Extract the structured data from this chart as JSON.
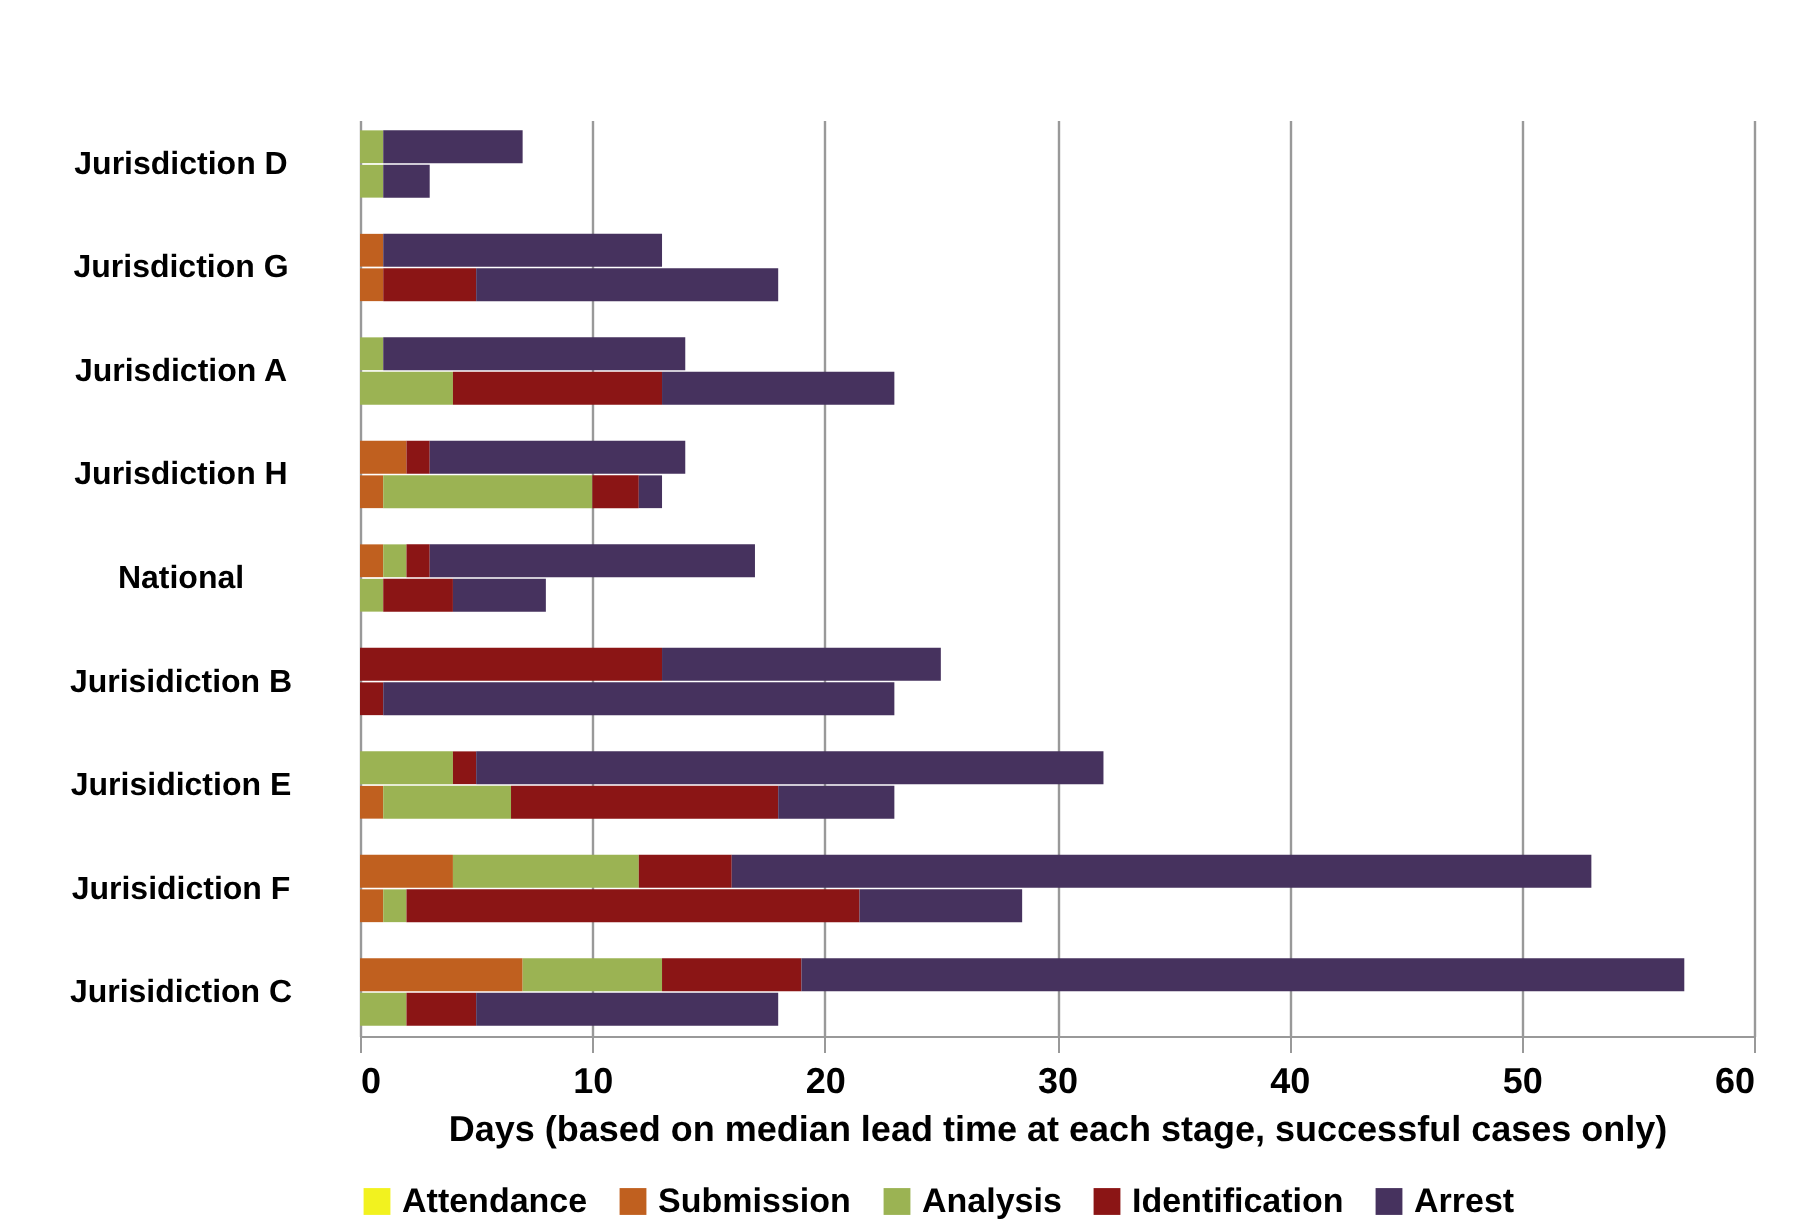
{
  "chart_data": {
    "type": "bar",
    "orientation": "horizontal",
    "stacked": true,
    "categories": [
      "Jurisdiction D",
      null,
      null,
      "Jurisdiction G",
      null,
      null,
      "Jurisdiction A",
      null,
      null,
      "Jurisdiction H",
      null,
      null,
      "National",
      null,
      null,
      "Jurisidiction B",
      null,
      null,
      "Jurisidiction E",
      null,
      null,
      "Jurisidiction F",
      null,
      null,
      "Jurisidiction C",
      null
    ],
    "series": [
      {
        "name": "Attendance",
        "color": "#f2f21f",
        "values": [
          0,
          0,
          null,
          0,
          0,
          null,
          0,
          0,
          null,
          0,
          0,
          null,
          0,
          0,
          null,
          0,
          0,
          null,
          0,
          0,
          null,
          0,
          0,
          null,
          0,
          0
        ]
      },
      {
        "name": "Submission",
        "color": "#c0601f",
        "values": [
          0,
          0,
          null,
          1,
          1,
          null,
          0,
          0,
          null,
          2,
          1,
          null,
          1,
          0,
          null,
          0,
          0,
          null,
          0,
          1,
          null,
          4,
          1,
          null,
          7,
          0
        ]
      },
      {
        "name": "Analysis",
        "color": "#9bb353",
        "values": [
          1,
          1,
          null,
          0,
          0,
          null,
          1,
          4,
          null,
          0,
          9,
          null,
          1,
          1,
          null,
          0,
          0,
          null,
          4,
          5.5,
          null,
          8,
          1,
          null,
          6,
          2
        ]
      },
      {
        "name": "Identification",
        "color": "#8b1515",
        "values": [
          0,
          0,
          null,
          0,
          4,
          null,
          0,
          9,
          null,
          1,
          2,
          null,
          1,
          3,
          null,
          13,
          1,
          null,
          1,
          11.5,
          null,
          4,
          19.5,
          null,
          6,
          3
        ]
      },
      {
        "name": "Arrest",
        "color": "#46325e",
        "values": [
          6,
          2,
          null,
          12,
          13,
          null,
          13,
          10,
          null,
          11,
          1,
          null,
          14,
          4,
          null,
          12,
          22,
          null,
          27,
          5,
          null,
          37,
          7,
          null,
          38,
          13
        ]
      }
    ],
    "xlabel": "Days (based on median lead time at each stage, successful cases only)",
    "xlim": [
      0,
      60
    ],
    "xticks": [
      0,
      10,
      20,
      30,
      40,
      50,
      60
    ],
    "grid": "x",
    "legend": "bottom"
  }
}
